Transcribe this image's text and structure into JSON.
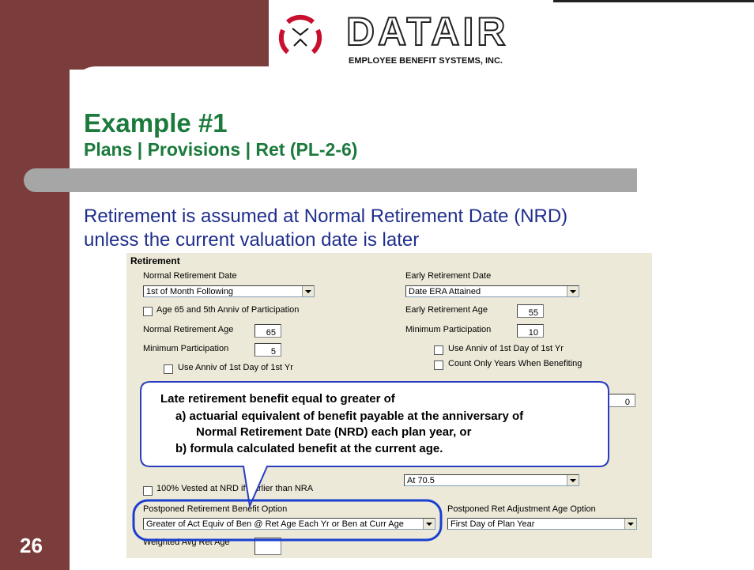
{
  "logo": {
    "name": "DATAIR",
    "tagline": "EMPLOYEE BENEFIT SYSTEMS, INC."
  },
  "title": "Example #1",
  "subtitle": "Plans | Provisions | Ret (PL-2-6)",
  "body": [
    "Retirement is assumed at Normal Retirement Date (NRD)",
    "unless the current valuation date is later"
  ],
  "form": {
    "section": "Retirement",
    "normal_retirement_date": {
      "label": "Normal Retirement Date",
      "value": "1st of Month Following"
    },
    "age65_checkbox": "Age 65 and 5th Anniv of Participation",
    "normal_retirement_age": {
      "label": "Normal Retirement Age",
      "value": "65"
    },
    "minimum_participation_left": {
      "label": "Minimum Participation",
      "value": "5"
    },
    "use_anniv_left": "Use Anniv of 1st Day of 1st Yr",
    "early_retirement_date": {
      "label": "Early Retirement Date",
      "value": "Date ERA Attained"
    },
    "early_retirement_age": {
      "label": "Early Retirement Age",
      "value": "55"
    },
    "minimum_participation_right": {
      "label": "Minimum Participation",
      "value": "10"
    },
    "use_anniv_right": "Use Anniv of 1st Day of 1st Yr",
    "count_only": "Count Only Years When Benefiting",
    "hidden_field_value": "0",
    "required_beginning": "At 70.5",
    "vested_checkbox": "100% Vested at NRD if Earlier than NRA",
    "postponed_option": {
      "label": "Postponed Retirement Benefit Option",
      "value": "Greater of Act Equiv of Ben @ Ret Age Each Yr or Ben at Curr Age"
    },
    "postponed_adjustment": {
      "label": "Postponed Ret Adjustment Age Option",
      "value": "First Day of Plan Year"
    },
    "weighted_avg": {
      "label": "Weighted Avg Ret Age",
      "value": ""
    }
  },
  "callout": {
    "heading": "Late retirement benefit equal to greater of",
    "lines": [
      "a)  actuarial equivalent of benefit payable at the anniversary of",
      "Normal Retirement Date (NRD) each plan year, or",
      "b)  formula calculated benefit at the current age."
    ]
  },
  "slide_number": "26"
}
